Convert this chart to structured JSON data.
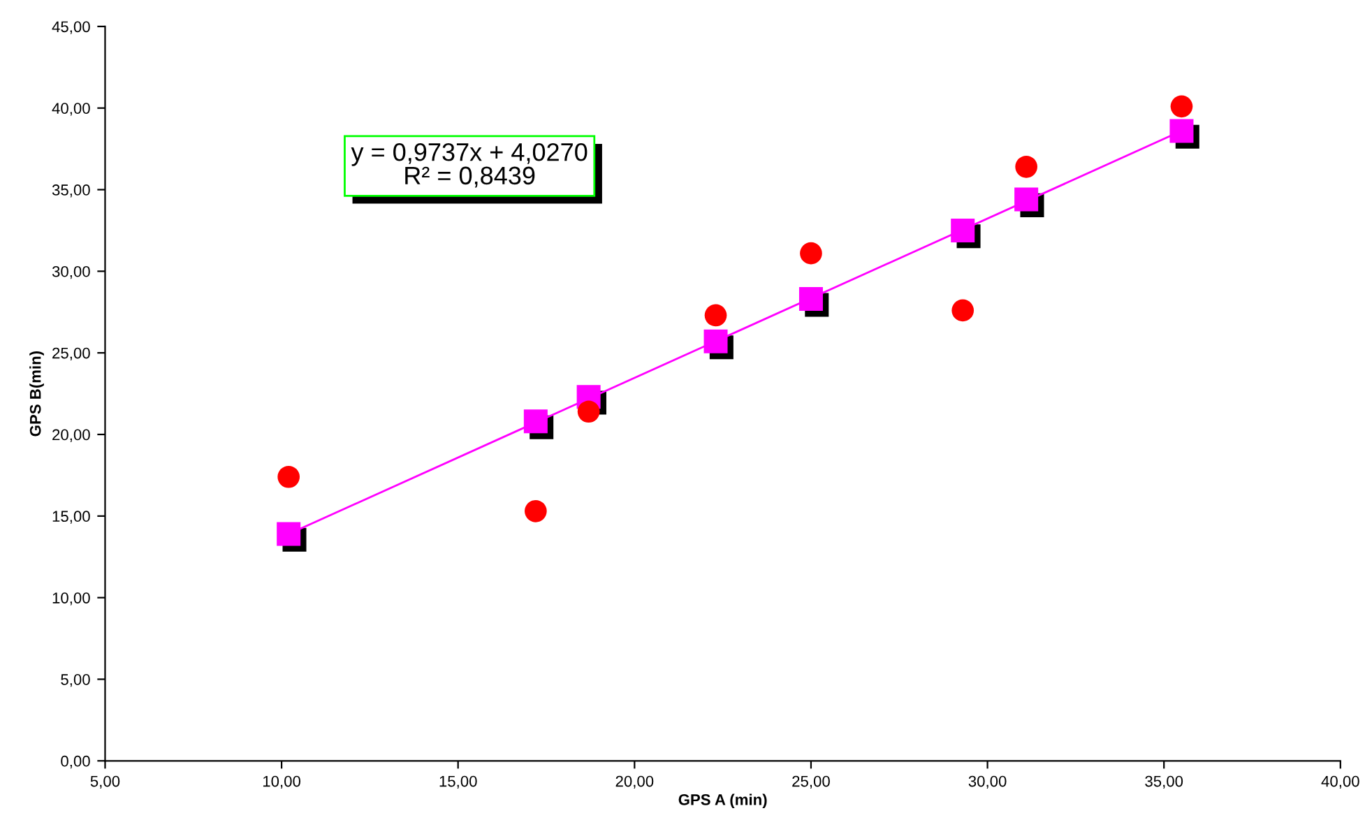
{
  "chart_data": {
    "type": "scatter",
    "xlabel": "GPS A (min)",
    "ylabel": "GPS B(min)",
    "annotations": [
      "y = 0,9737x + 4,0270\nR² = 0,8439"
    ],
    "series": [
      {
        "marker": "square",
        "color": "#ff00ff",
        "x": [
          10.2,
          17.2,
          18.7,
          22.3,
          25.0,
          29.3,
          31.1,
          35.5
        ],
        "values": [
          13.9,
          20.8,
          22.3,
          25.7,
          28.3,
          32.5,
          34.4,
          38.6
        ]
      },
      {
        "marker": "circle",
        "color": "#ff0000",
        "x": [
          10.2,
          17.2,
          18.7,
          22.3,
          25.0,
          29.3,
          31.1,
          35.5
        ],
        "values": [
          17.4,
          15.3,
          21.4,
          27.3,
          31.1,
          27.6,
          36.4,
          40.1
        ]
      },
      {
        "type": "line",
        "marker": "none",
        "color": "#ff00ff",
        "x": [
          10.2,
          35.5
        ],
        "values": [
          13.9,
          38.6
        ]
      }
    ],
    "xlim": [
      5,
      40
    ],
    "ylim": [
      0,
      45
    ],
    "xticks": [
      {
        "value": 5,
        "label": "5,00"
      },
      {
        "value": 10,
        "label": "10,00"
      },
      {
        "value": 15,
        "label": "15,00"
      },
      {
        "value": 20,
        "label": "20,00"
      },
      {
        "value": 25,
        "label": "25,00"
      },
      {
        "value": 30,
        "label": "30,00"
      },
      {
        "value": 35,
        "label": "35,00"
      },
      {
        "value": 40,
        "label": "40,00"
      }
    ],
    "yticks": [
      {
        "value": 0,
        "label": "0,00"
      },
      {
        "value": 5,
        "label": "5,00"
      },
      {
        "value": 10,
        "label": "10,00"
      },
      {
        "value": 15,
        "label": "15,00"
      },
      {
        "value": 20,
        "label": "20,00"
      },
      {
        "value": 25,
        "label": "25,00"
      },
      {
        "value": 30,
        "label": "30,00"
      },
      {
        "value": 35,
        "label": "35,00"
      },
      {
        "value": 40,
        "label": "40,00"
      },
      {
        "value": 45,
        "label": "45,00"
      }
    ],
    "grid": false,
    "legend": false
  }
}
